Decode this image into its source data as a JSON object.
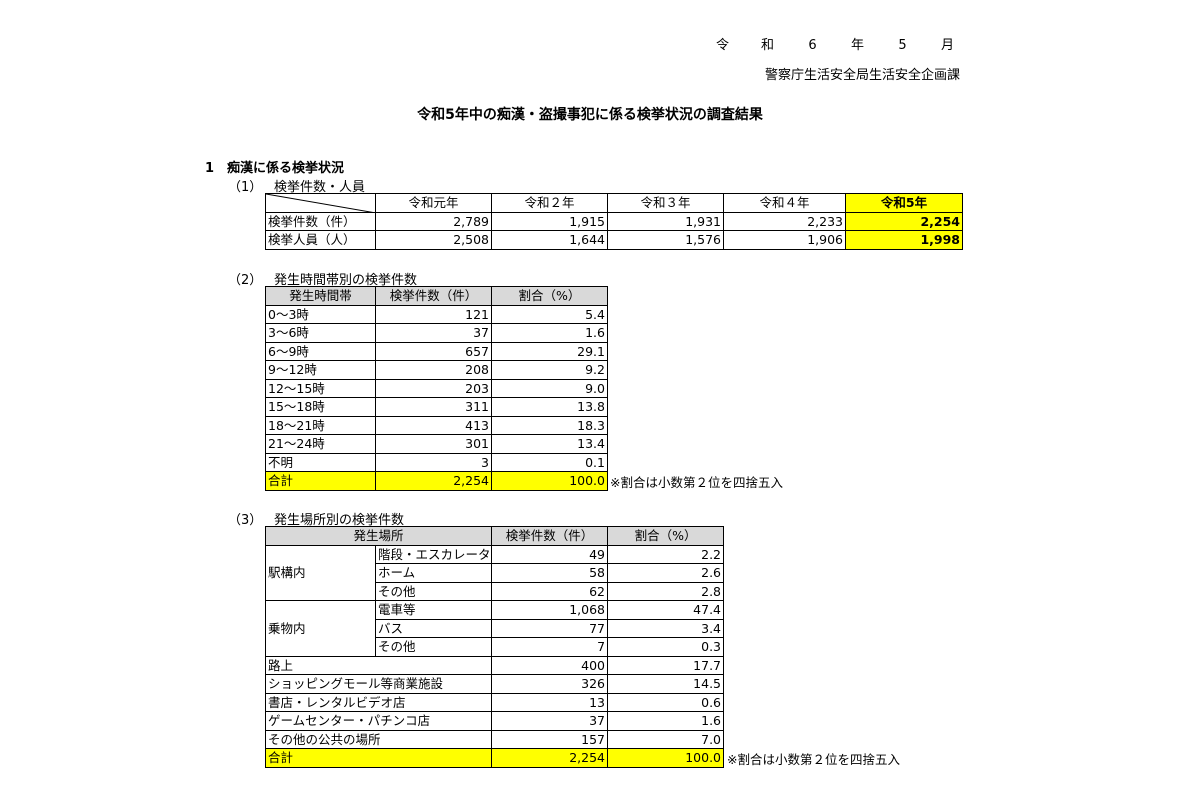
{
  "header": {
    "date_parts": [
      "令",
      "和",
      "6",
      "年",
      "5",
      "月"
    ],
    "department": "警察庁生活安全局生活安全企画課"
  },
  "title": "令和5年中の痴漢・盗撮事犯に係る検挙状況の調査結果",
  "section1": {
    "heading": "1　痴漢に係る検挙状況"
  },
  "table1": {
    "number": "（1）",
    "label": "検挙件数・人員",
    "columns": [
      "令和元年",
      "令和２年",
      "令和３年",
      "令和４年",
      "令和5年"
    ],
    "rows": [
      {
        "label": "検挙件数（件）",
        "values": [
          "2,789",
          "1,915",
          "1,931",
          "2,233",
          "2,254"
        ]
      },
      {
        "label": "検挙人員（人）",
        "values": [
          "2,508",
          "1,644",
          "1,576",
          "1,906",
          "1,998"
        ]
      }
    ]
  },
  "table2": {
    "number": "（2）",
    "label": "発生時間帯別の検挙件数",
    "columns": [
      "発生時間帯",
      "検挙件数（件）",
      "割合（%）"
    ],
    "rows": [
      [
        "0～3時",
        "121",
        "5.4"
      ],
      [
        "3～6時",
        "37",
        "1.6"
      ],
      [
        "6～9時",
        "657",
        "29.1"
      ],
      [
        "9～12時",
        "208",
        "9.2"
      ],
      [
        "12～15時",
        "203",
        "9.0"
      ],
      [
        "15～18時",
        "311",
        "13.8"
      ],
      [
        "18～21時",
        "413",
        "18.3"
      ],
      [
        "21～24時",
        "301",
        "13.4"
      ],
      [
        "不明",
        "3",
        "0.1"
      ]
    ],
    "total": [
      "合計",
      "2,254",
      "100.0"
    ],
    "note": "※割合は小数第２位を四捨五入"
  },
  "table3": {
    "number": "（3）",
    "label": "発生場所別の検挙件数",
    "columns": [
      "発生場所",
      "検挙件数（件）",
      "割合（%）"
    ],
    "groups": [
      {
        "label": "駅構内",
        "rows": [
          [
            "階段・エスカレーター",
            "49",
            "2.2"
          ],
          [
            "ホーム",
            "58",
            "2.6"
          ],
          [
            "その他",
            "62",
            "2.8"
          ]
        ]
      },
      {
        "label": "乗物内",
        "rows": [
          [
            "電車等",
            "1,068",
            "47.4"
          ],
          [
            "バス",
            "77",
            "3.4"
          ],
          [
            "その他",
            "7",
            "0.3"
          ]
        ]
      }
    ],
    "rows": [
      [
        "路上",
        "400",
        "17.7"
      ],
      [
        "ショッピングモール等商業施設",
        "326",
        "14.5"
      ],
      [
        "書店・レンタルビデオ店",
        "13",
        "0.6"
      ],
      [
        "ゲームセンター・パチンコ店",
        "37",
        "1.6"
      ],
      [
        "その他の公共の場所",
        "157",
        "7.0"
      ]
    ],
    "total": [
      "合計",
      "2,254",
      "100.0"
    ],
    "note": "※割合は小数第２位を四捨五入"
  },
  "colors": {
    "highlight": "#ffff00",
    "header_gray": "#d9d9d9"
  }
}
